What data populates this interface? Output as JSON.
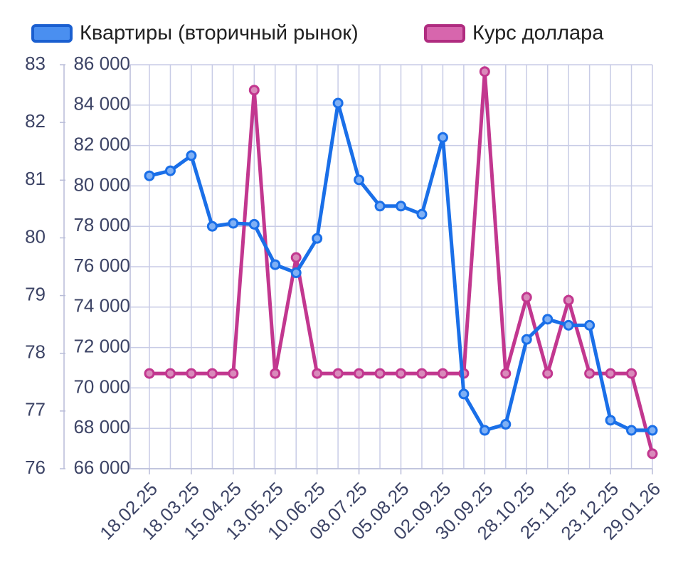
{
  "chart_data": {
    "type": "line",
    "categories": [
      "18.02.25",
      null,
      "18.03.25",
      null,
      "15.04.25",
      null,
      "13.05.25",
      null,
      "10.06.25",
      null,
      "08.07.25",
      null,
      "05.08.25",
      null,
      "02.09.25",
      null,
      "30.09.25",
      null,
      "28.10.25",
      null,
      "25.11.25",
      null,
      "23.12.25",
      null,
      "29.01.26"
    ],
    "series": [
      {
        "name": "Квартиры (вторичный рынок)",
        "color": "#1a6fe8",
        "values": [
          80500,
          80750,
          81500,
          78000,
          78150,
          78100,
          76100,
          75700,
          77400,
          84100,
          80300,
          79000,
          79000,
          78600,
          82400,
          69700,
          67900,
          68200,
          72400,
          73400,
          73100,
          73100,
          68400,
          67900,
          67900
        ]
      },
      {
        "name": "Курс доллара",
        "color": "#c2378f",
        "axis": "y2",
        "values": [
          77.65,
          77.65,
          77.65,
          77.65,
          77.65,
          82.56,
          77.65,
          79.66,
          77.65,
          77.65,
          77.65,
          77.65,
          77.65,
          77.65,
          77.65,
          77.65,
          82.88,
          77.65,
          78.97,
          77.65,
          78.92,
          77.65,
          77.65,
          77.65,
          76.26
        ]
      }
    ],
    "ylim": [
      66000,
      86000
    ],
    "yticks": [
      {
        "value": 66000,
        "label": "66 000"
      },
      {
        "value": 68000,
        "label": "68 000"
      },
      {
        "value": 70000,
        "label": "70 000"
      },
      {
        "value": 72000,
        "label": "72 000"
      },
      {
        "value": 74000,
        "label": "74 000"
      },
      {
        "value": 76000,
        "label": "76 000"
      },
      {
        "value": 78000,
        "label": "78 000"
      },
      {
        "value": 80000,
        "label": "80 000"
      },
      {
        "value": 82000,
        "label": "82 000"
      },
      {
        "value": 84000,
        "label": "84 000"
      },
      {
        "value": 86000,
        "label": "86 000"
      }
    ],
    "y2lim": [
      76,
      83
    ],
    "y2ticks": [
      76,
      77,
      78,
      79,
      80,
      81,
      82,
      83
    ],
    "grid": true,
    "legend": "top"
  }
}
